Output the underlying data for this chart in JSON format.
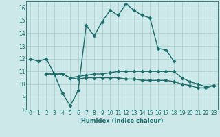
{
  "xlabel": "Humidex (Indice chaleur)",
  "x": [
    0,
    1,
    2,
    3,
    4,
    5,
    6,
    7,
    8,
    9,
    10,
    11,
    12,
    13,
    14,
    15,
    16,
    17,
    18,
    19,
    20,
    21,
    22,
    23
  ],
  "line1": [
    12.0,
    11.8,
    12.0,
    10.8,
    9.3,
    8.3,
    9.5,
    14.6,
    13.8,
    14.9,
    15.8,
    15.4,
    16.3,
    15.8,
    15.4,
    15.2,
    12.8,
    12.7,
    11.8,
    null,
    null,
    null,
    null,
    null
  ],
  "line2": [
    null,
    null,
    10.8,
    10.8,
    10.8,
    10.5,
    10.4,
    10.5,
    10.5,
    10.5,
    10.5,
    10.5,
    10.4,
    10.4,
    10.3,
    10.3,
    10.3,
    10.3,
    10.2,
    10.0,
    9.9,
    9.7,
    9.7,
    9.9
  ],
  "line3": [
    null,
    null,
    10.8,
    10.8,
    10.8,
    10.5,
    10.6,
    10.7,
    10.8,
    10.8,
    10.9,
    11.0,
    11.0,
    11.0,
    11.0,
    11.0,
    11.0,
    11.0,
    11.0,
    10.5,
    10.2,
    10.0,
    9.8,
    9.9
  ],
  "bg_color": "#cce8e8",
  "line_color": "#1a6b6b",
  "grid_color": "#aacccc",
  "ylim": [
    8,
    16.5
  ],
  "xlim": [
    -0.5,
    23.5
  ],
  "yticks": [
    8,
    9,
    10,
    11,
    12,
    13,
    14,
    15,
    16
  ],
  "xticks": [
    0,
    1,
    2,
    3,
    4,
    5,
    6,
    7,
    8,
    9,
    10,
    11,
    12,
    13,
    14,
    15,
    16,
    17,
    18,
    19,
    20,
    21,
    22,
    23
  ]
}
